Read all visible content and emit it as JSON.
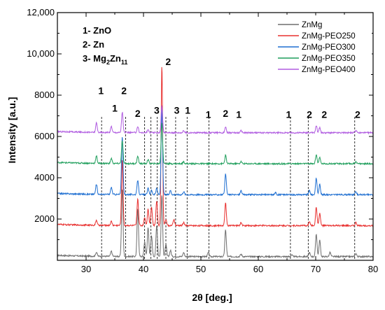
{
  "chart_data": {
    "type": "line",
    "xlabel": "2θ [deg.]",
    "ylabel": "Intensity [a.u.]",
    "xlim": [
      25,
      80
    ],
    "ylim": [
      0,
      12000
    ],
    "x_ticks": [
      "30",
      "40",
      "50",
      "60",
      "70",
      "80"
    ],
    "y_ticks": [
      "2000",
      "4000",
      "6000",
      "8000",
      "10,000",
      "12,000"
    ],
    "phase_key": [
      {
        "prefix": "1- ZnO",
        "sub": "",
        "suffix": ""
      },
      {
        "prefix": "2- Zn",
        "sub": "",
        "suffix": ""
      },
      {
        "prefix": "3- Mg",
        "sub": "2",
        "mid": "Zn",
        "sub2": "11"
      }
    ],
    "series": [
      {
        "name": "ZnMg",
        "color": "#6e6e6e",
        "baseline": 180,
        "peaks": [
          [
            31.8,
            200
          ],
          [
            34.4,
            250
          ],
          [
            36.3,
            3300
          ],
          [
            39.0,
            2300
          ],
          [
            40.2,
            700
          ],
          [
            40.8,
            1400
          ],
          [
            41.4,
            1000
          ],
          [
            42.3,
            1500
          ],
          [
            43.2,
            3000
          ],
          [
            43.9,
            600
          ],
          [
            44.7,
            300
          ],
          [
            47.0,
            200
          ],
          [
            51.3,
            200
          ],
          [
            54.3,
            1300
          ],
          [
            57.0,
            120
          ],
          [
            65.8,
            80
          ],
          [
            68.9,
            200
          ],
          [
            70.1,
            1100
          ],
          [
            70.7,
            800
          ],
          [
            72.5,
            200
          ],
          [
            77.0,
            150
          ]
        ]
      },
      {
        "name": "ZnMg-PEO250",
        "color": "#e8302f",
        "baseline": 1680,
        "peaks": [
          [
            31.8,
            250
          ],
          [
            34.4,
            200
          ],
          [
            36.3,
            3200
          ],
          [
            39.0,
            1300
          ],
          [
            40.2,
            400
          ],
          [
            40.8,
            800
          ],
          [
            41.4,
            900
          ],
          [
            42.3,
            1200
          ],
          [
            43.2,
            7800
          ],
          [
            43.9,
            300
          ],
          [
            45.3,
            300
          ],
          [
            47.0,
            150
          ],
          [
            54.3,
            1100
          ],
          [
            57.0,
            150
          ],
          [
            68.9,
            200
          ],
          [
            70.1,
            900
          ],
          [
            70.7,
            600
          ],
          [
            77.0,
            150
          ]
        ]
      },
      {
        "name": "ZnMg-PEO300",
        "color": "#1f6fd1",
        "baseline": 3180,
        "peaks": [
          [
            31.8,
            500
          ],
          [
            34.4,
            350
          ],
          [
            36.3,
            2800
          ],
          [
            39.0,
            700
          ],
          [
            40.8,
            300
          ],
          [
            41.4,
            200
          ],
          [
            42.3,
            300
          ],
          [
            43.2,
            4200
          ],
          [
            44.7,
            200
          ],
          [
            47.0,
            150
          ],
          [
            54.3,
            1000
          ],
          [
            57.0,
            200
          ],
          [
            63.0,
            100
          ],
          [
            68.9,
            200
          ],
          [
            70.1,
            800
          ],
          [
            70.7,
            500
          ],
          [
            77.0,
            150
          ]
        ]
      },
      {
        "name": "ZnMg-PEO350",
        "color": "#1e9e5b",
        "baseline": 4680,
        "peaks": [
          [
            31.8,
            350
          ],
          [
            34.4,
            250
          ],
          [
            36.3,
            1100
          ],
          [
            39.0,
            350
          ],
          [
            40.8,
            200
          ],
          [
            43.2,
            2000
          ],
          [
            47.0,
            100
          ],
          [
            54.3,
            400
          ],
          [
            57.0,
            100
          ],
          [
            70.1,
            450
          ],
          [
            70.7,
            300
          ],
          [
            77.0,
            100
          ]
        ]
      },
      {
        "name": "ZnMg-PEO400",
        "color": "#b05ce0",
        "baseline": 6180,
        "peaks": [
          [
            31.8,
            450
          ],
          [
            34.4,
            300
          ],
          [
            36.3,
            1000
          ],
          [
            39.0,
            300
          ],
          [
            40.8,
            150
          ],
          [
            43.2,
            1300
          ],
          [
            47.0,
            100
          ],
          [
            54.3,
            300
          ],
          [
            57.0,
            100
          ],
          [
            70.1,
            350
          ],
          [
            70.7,
            250
          ],
          [
            77.0,
            100
          ]
        ]
      }
    ],
    "reference_lines": [
      {
        "x": 32.7,
        "label": "1"
      },
      {
        "x": 36.9,
        "label": "2"
      },
      {
        "x": 40.2,
        "label": ""
      },
      {
        "x": 41.3,
        "label": ""
      },
      {
        "x": 42.4,
        "label": ""
      },
      {
        "x": 43.9,
        "label": ""
      },
      {
        "x": 45.6,
        "label": ""
      },
      {
        "x": 47.6,
        "label": ""
      },
      {
        "x": 51.4,
        "label": ""
      },
      {
        "x": 65.6,
        "label": "1"
      },
      {
        "x": 68.7,
        "label": "2"
      },
      {
        "x": 76.8,
        "label": "2"
      }
    ],
    "peak_labels": [
      {
        "x": 32.6,
        "y": 8050,
        "text": "1"
      },
      {
        "x": 36.6,
        "y": 8050,
        "text": "2"
      },
      {
        "x": 35.0,
        "y": 7200,
        "text": "1"
      },
      {
        "x": 39.0,
        "y": 6950,
        "text": "2"
      },
      {
        "x": 42.3,
        "y": 7100,
        "text": "3"
      },
      {
        "x": 44.3,
        "y": 9450,
        "text": "2"
      },
      {
        "x": 45.8,
        "y": 7100,
        "text": "3"
      },
      {
        "x": 47.7,
        "y": 7100,
        "text": "1"
      },
      {
        "x": 51.3,
        "y": 6900,
        "text": "1"
      },
      {
        "x": 54.3,
        "y": 6950,
        "text": "2"
      },
      {
        "x": 56.6,
        "y": 6900,
        "text": "1"
      },
      {
        "x": 65.3,
        "y": 6900,
        "text": "1"
      },
      {
        "x": 68.9,
        "y": 6900,
        "text": "2"
      },
      {
        "x": 71.5,
        "y": 6900,
        "text": "2"
      },
      {
        "x": 77.3,
        "y": 6900,
        "text": "2"
      }
    ],
    "legend_position": "top-right",
    "grid": false
  }
}
